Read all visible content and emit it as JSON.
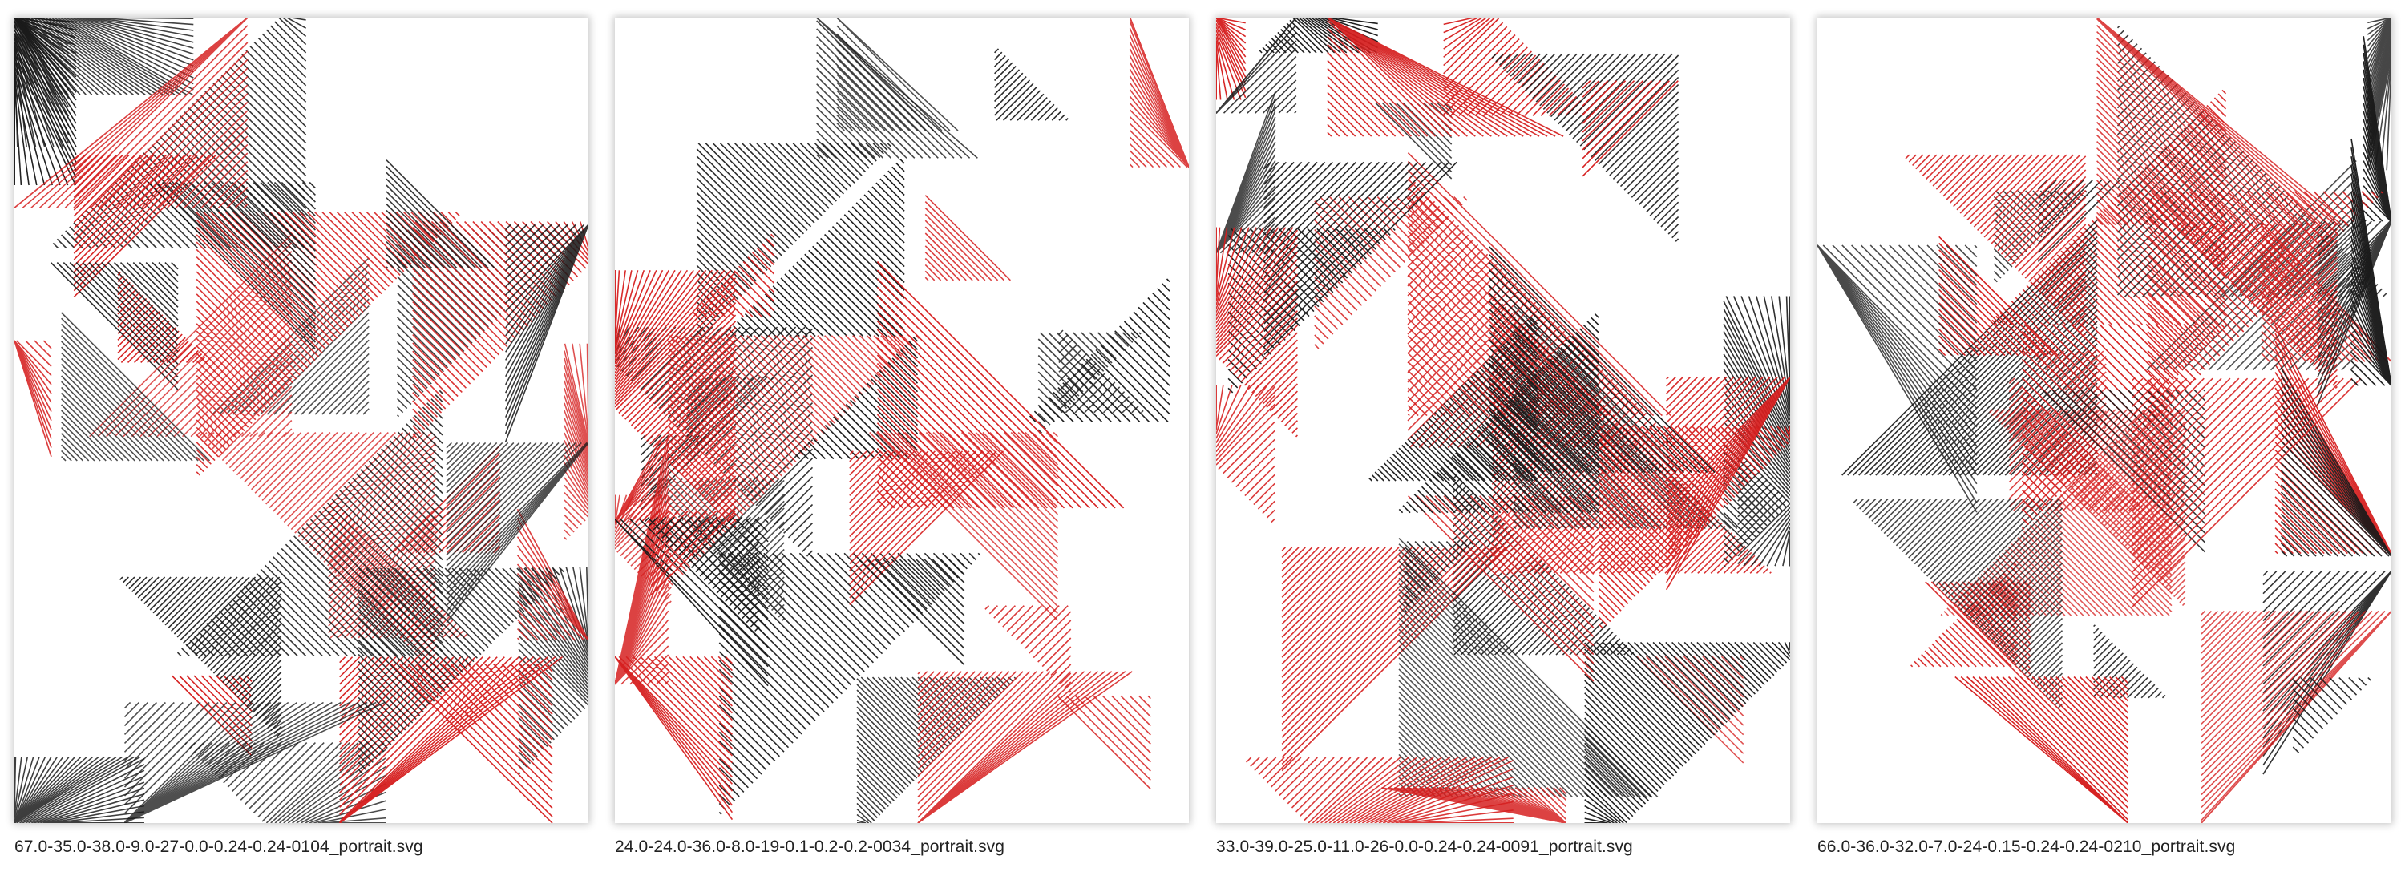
{
  "colors": {
    "red": "#d61f1f",
    "black": "#1a1a1a",
    "background": "#ffffff"
  },
  "artworks": [
    {
      "filename": "67.0-35.0-38.0-9.0-27-0.0-0.24-0.24-0104_portrait.svg",
      "seed": 104
    },
    {
      "filename": "24.0-24.0-36.0-8.0-19-0.1-0.2-0.2-0034_portrait.svg",
      "seed": 34
    },
    {
      "filename": "33.0-39.0-25.0-11.0-26-0.0-0.24-0.24-0091_portrait.svg",
      "seed": 91
    },
    {
      "filename": "66.0-36.0-32.0-7.0-24-0.15-0.24-0.24-0210_portrait.svg",
      "seed": 210
    }
  ]
}
